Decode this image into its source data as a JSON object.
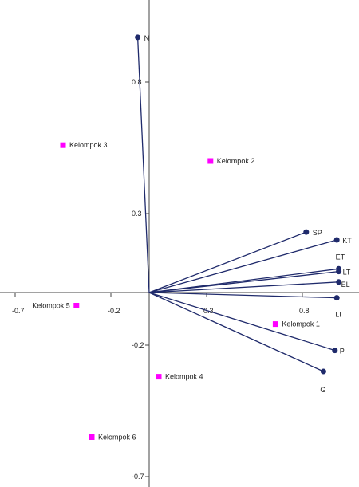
{
  "chart_data": {
    "type": "scatter",
    "title": "",
    "xlabel": "",
    "ylabel": "",
    "xlim": [
      -0.8,
      1.1
    ],
    "ylim": [
      -0.7,
      1.05
    ],
    "grid": false,
    "x_ticks": [
      {
        "value": -0.7,
        "label": "-0.7"
      },
      {
        "value": -0.2,
        "label": "-0.2"
      },
      {
        "value": 0.3,
        "label": "0.3"
      },
      {
        "value": 0.8,
        "label": "0.8"
      }
    ],
    "y_ticks": [
      {
        "value": 0.8,
        "label": "0.8"
      },
      {
        "value": 0.3,
        "label": "0.3"
      },
      {
        "value": -0.2,
        "label": "-0.2"
      },
      {
        "value": -0.7,
        "label": "-0.7"
      }
    ],
    "series": [
      {
        "kind": "vectors",
        "color": "#1f2a6b",
        "points": [
          {
            "label": "N",
            "x": -0.06,
            "y": 0.97
          },
          {
            "label": "SP",
            "x": 0.82,
            "y": 0.23
          },
          {
            "label": "KT",
            "x": 0.98,
            "y": 0.2
          },
          {
            "label": "ET",
            "x": 0.99,
            "y": 0.09
          },
          {
            "label": "LT",
            "x": 0.99,
            "y": 0.08
          },
          {
            "label": "EL",
            "x": 0.99,
            "y": 0.04
          },
          {
            "label": "LI",
            "x": 0.98,
            "y": -0.02
          },
          {
            "label": "P",
            "x": 0.97,
            "y": -0.22
          },
          {
            "label": "G",
            "x": 0.91,
            "y": -0.3
          }
        ]
      },
      {
        "kind": "markers",
        "color": "#ff00ff",
        "points": [
          {
            "label": "Kelompok 1",
            "x": 0.66,
            "y": -0.12
          },
          {
            "label": "Kelompok 2",
            "x": 0.32,
            "y": 0.5
          },
          {
            "label": "Kelompok 3",
            "x": -0.45,
            "y": 0.56
          },
          {
            "label": "Kelompok 4",
            "x": 0.05,
            "y": -0.32
          },
          {
            "label": "Kelompok 5",
            "x": -0.38,
            "y": -0.05
          },
          {
            "label": "Kelompok 6",
            "x": -0.3,
            "y": -0.55
          }
        ]
      }
    ]
  }
}
